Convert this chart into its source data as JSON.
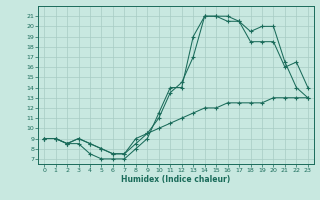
{
  "xlabel": "Humidex (Indice chaleur)",
  "bg_color": "#c8e8e0",
  "line_color": "#1a6b5a",
  "grid_color": "#a8ccc4",
  "xlim": [
    -0.5,
    23.5
  ],
  "ylim": [
    6.5,
    22
  ],
  "yticks": [
    7,
    8,
    9,
    10,
    11,
    12,
    13,
    14,
    15,
    16,
    17,
    18,
    19,
    20,
    21
  ],
  "xticks": [
    0,
    1,
    2,
    3,
    4,
    5,
    6,
    7,
    8,
    9,
    10,
    11,
    12,
    13,
    14,
    15,
    16,
    17,
    18,
    19,
    20,
    21,
    22,
    23
  ],
  "line1_x": [
    0,
    1,
    2,
    3,
    4,
    5,
    6,
    7,
    8,
    9,
    10,
    11,
    12,
    13,
    14,
    15,
    16,
    17,
    18,
    19,
    20,
    21,
    22,
    23
  ],
  "line1_y": [
    9,
    9,
    8.5,
    8.5,
    7.5,
    7,
    7,
    7,
    8,
    9,
    11.5,
    14,
    14,
    19,
    21,
    21,
    20.5,
    20.5,
    19.5,
    20,
    20,
    16.5,
    14,
    13
  ],
  "line2_x": [
    0,
    1,
    2,
    3,
    4,
    5,
    6,
    7,
    8,
    9,
    10,
    11,
    12,
    13,
    14,
    15,
    16,
    17,
    18,
    19,
    20,
    21,
    22,
    23
  ],
  "line2_y": [
    9,
    9,
    8.5,
    9,
    8.5,
    8,
    7.5,
    7.5,
    9,
    9.5,
    11,
    13.5,
    14.5,
    17,
    21,
    21,
    21,
    20.5,
    18.5,
    18.5,
    18.5,
    16,
    16.5,
    14
  ],
  "line3_x": [
    0,
    1,
    2,
    3,
    4,
    5,
    6,
    7,
    8,
    9,
    10,
    11,
    12,
    13,
    14,
    15,
    16,
    17,
    18,
    19,
    20,
    21,
    22,
    23
  ],
  "line3_y": [
    9,
    9,
    8.5,
    9,
    8.5,
    8,
    7.5,
    7.5,
    8.5,
    9.5,
    10,
    10.5,
    11,
    11.5,
    12,
    12,
    12.5,
    12.5,
    12.5,
    12.5,
    13,
    13,
    13,
    13
  ]
}
